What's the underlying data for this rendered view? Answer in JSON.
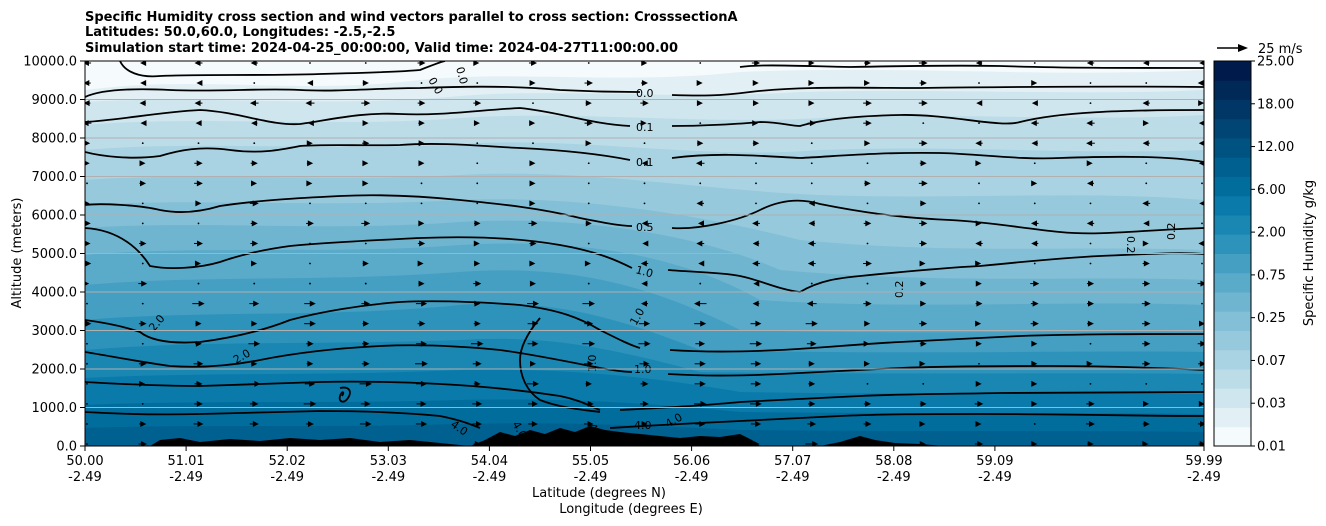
{
  "chart_data": {
    "type": "heatmap",
    "title_lines": [
      "Specific Humidity cross section and wind vectors parallel to cross section: CrosssectionA",
      "Latitudes: 50.0,60.0, Longitudes: -2.5,-2.5",
      "Simulation start time: 2024-04-25_00:00:00, Valid time: 2024-04-27T11:00:00.00"
    ],
    "ylabel": "Altitude (meters)",
    "xlabel_lines": [
      "Latitude (degrees N)",
      "Longitude (degrees E)"
    ],
    "ylim": [
      0,
      10000
    ],
    "y_ticks": [
      "0.0",
      "1000.0",
      "2000.0",
      "3000.0",
      "4000.0",
      "5000.0",
      "6000.0",
      "7000.0",
      "8000.0",
      "9000.0",
      "10000.0"
    ],
    "x_ticks": [
      {
        "lat": "50.00",
        "lon": "-2.49"
      },
      {
        "lat": "51.01",
        "lon": "-2.49"
      },
      {
        "lat": "52.02",
        "lon": "-2.49"
      },
      {
        "lat": "53.03",
        "lon": "-2.49"
      },
      {
        "lat": "54.04",
        "lon": "-2.49"
      },
      {
        "lat": "55.05",
        "lon": "-2.49"
      },
      {
        "lat": "56.06",
        "lon": "-2.49"
      },
      {
        "lat": "57.07",
        "lon": "-2.49"
      },
      {
        "lat": "58.08",
        "lon": "-2.49"
      },
      {
        "lat": "59.09",
        "lon": "-2.49"
      },
      {
        "lat": "59.99",
        "lon": "-2.49"
      }
    ],
    "grid": "horizontal",
    "colorbar": {
      "label": "Specific Humidity g/kg",
      "tick_labels": [
        "0.01",
        "0.03",
        "0.07",
        "0.25",
        "0.75",
        "2.00",
        "6.00",
        "12.00",
        "18.00",
        "25.00"
      ],
      "colors": [
        "#f5fafc",
        "#e2f0f5",
        "#cfe6ee",
        "#bcdde8",
        "#a9d3e2",
        "#96c9dc",
        "#83bfd6",
        "#6fb5d0",
        "#5aaac9",
        "#449fc2",
        "#2e93bb",
        "#1a87b3",
        "#0a7aaa",
        "#006d9d",
        "#00608f",
        "#005381",
        "#004573",
        "#003766",
        "#002958",
        "#001b4b"
      ]
    },
    "contours": [
      {
        "label": "0.0",
        "altitude": 9000
      },
      {
        "label": "0.1",
        "altitude": 8000
      },
      {
        "label": "0.1",
        "altitude": 7000
      },
      {
        "label": "0.5",
        "altitude": 5500
      },
      {
        "label": "1.0",
        "altitude": 4500
      },
      {
        "label": "2.0",
        "altitude": 3000
      },
      {
        "label": "1.0",
        "altitude": 2000
      },
      {
        "label": "4.0",
        "altitude": 550
      }
    ],
    "contour_label_texts": [
      "0.0",
      "0.0",
      "0.0",
      "0.1",
      "0.1",
      "0.5",
      "1.0",
      "1.0",
      "1.0",
      "1.0",
      "2.0",
      "2.0",
      "4.0",
      "4.0",
      "4.0",
      "4.0",
      "4.0",
      "0.2",
      "0.2",
      "0.2"
    ],
    "wind_reference": "25 m/s"
  }
}
